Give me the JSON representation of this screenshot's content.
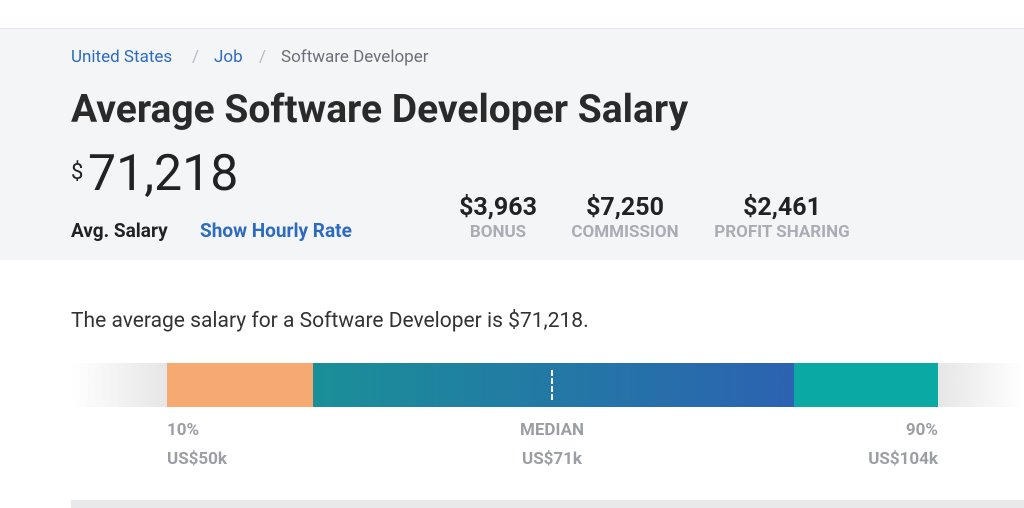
{
  "breadcrumb": [
    "United States",
    "Job",
    "Software Developer"
  ],
  "header": {
    "title": "Average Software Developer Salary",
    "currency": "$",
    "amount": "71,218",
    "avg_label": "Avg. Salary",
    "hourly_link": "Show Hourly Rate"
  },
  "stats": [
    {
      "value": "$3,963",
      "label": "BONUS"
    },
    {
      "value": "$7,250",
      "label": "COMMISSION"
    },
    {
      "value": "$2,461",
      "label": "PROFIT SHARING"
    }
  ],
  "summary": "The average salary for a Software Developer is $71,218.",
  "range": [
    {
      "label": "10%",
      "amount": "US$50k"
    },
    {
      "label": "MEDIAN",
      "amount": "US$71k"
    },
    {
      "label": "90%",
      "amount": "US$104k"
    }
  ]
}
